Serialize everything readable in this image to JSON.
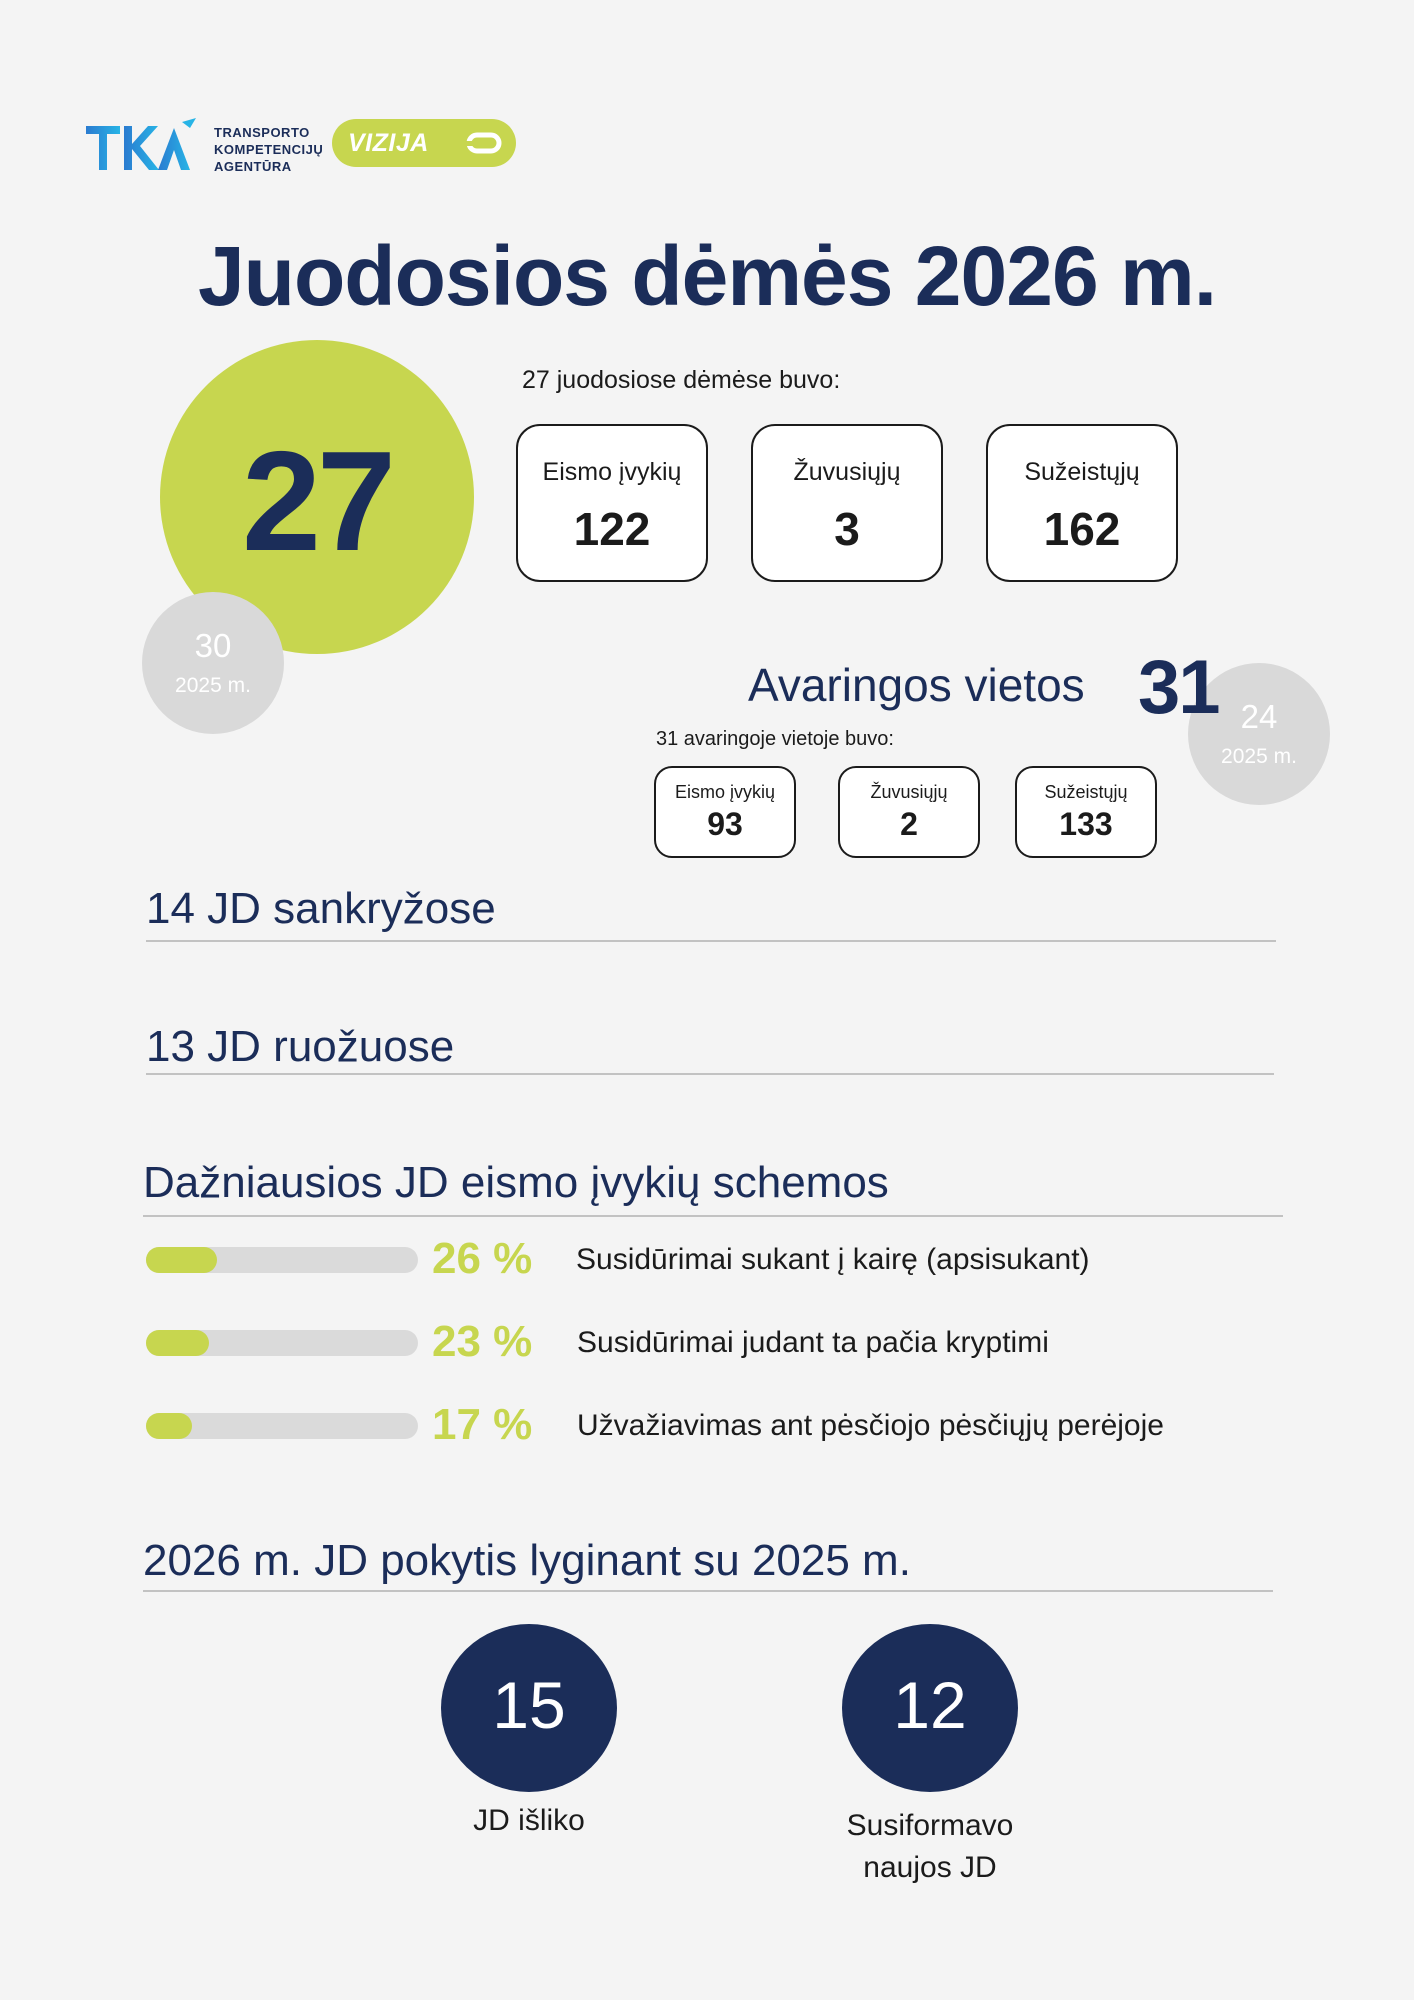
{
  "logo": {
    "tka_text": "TKA",
    "agency_lines": [
      "TRANSPORTO",
      "KOMPETENCIJŲ",
      "AGENTŪRA"
    ],
    "vizija": "VIZIJA"
  },
  "colors": {
    "navy": "#1b2d59",
    "lime": "#c7d64f",
    "grey": "#d9d9d9"
  },
  "title": "Juodosios dėmės 2026 m.",
  "black_spots": {
    "count": "27",
    "previous": {
      "count": "30",
      "year": "2025 m."
    },
    "subtitle": "27 juodosiose dėmėse buvo:",
    "stats": [
      {
        "label": "Eismo įvykių",
        "value": "122"
      },
      {
        "label": "Žuvusiųjų",
        "value": "3"
      },
      {
        "label": "Sužeistųjų",
        "value": "162"
      }
    ]
  },
  "dangerous_places": {
    "label": "Avaringos vietos",
    "count": "31",
    "previous": {
      "count": "24",
      "year": "2025 m."
    },
    "subtitle": "31 avaringoje vietoje buvo:",
    "stats": [
      {
        "label": "Eismo įvykių",
        "value": "93"
      },
      {
        "label": "Žuvusiųjų",
        "value": "2"
      },
      {
        "label": "Sužeistųjų",
        "value": "133"
      }
    ]
  },
  "sections": {
    "intersections": "14 JD sankryžose",
    "segments": "13 JD ruožuose",
    "schemes": "Dažniausios JD eismo įvykių schemos",
    "change": "2026 m. JD pokytis lyginant su 2025 m."
  },
  "schemes": [
    {
      "percent": 26,
      "percent_label": "26 %",
      "description": "Susidūrimai sukant į kairę (apsisukant)"
    },
    {
      "percent": 23,
      "percent_label": "23 %",
      "description": "Susidūrimai judant ta pačia kryptimi"
    },
    {
      "percent": 17,
      "percent_label": "17 %",
      "description": "Užvažiavimas ant pėsčiojo pėsčiųjų perėjoje"
    }
  ],
  "change": [
    {
      "value": "15",
      "caption": "JD išliko"
    },
    {
      "value": "12",
      "caption": "Susiformavo naujos JD"
    }
  ]
}
